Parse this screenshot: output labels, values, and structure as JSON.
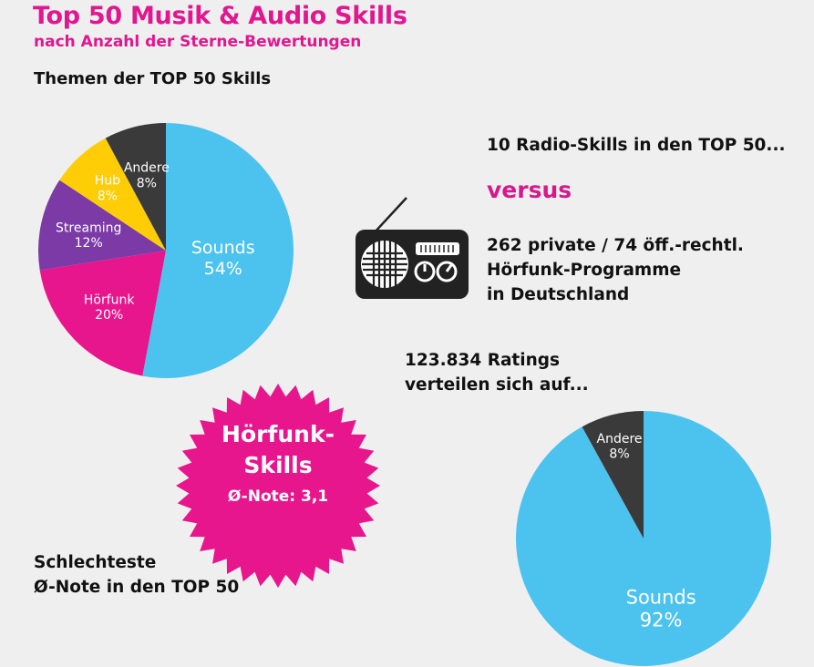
{
  "header": {
    "title": "Top 50 Musik & Audio Skills",
    "subtitle": "nach Anzahl der Sterne-Bewertungen"
  },
  "themes_heading": "Themen der TOP 50 Skills",
  "comparison": {
    "radio_skills": "10 Radio-Skills in den TOP 50...",
    "versus": "versus",
    "programs_lines": [
      "262 private / 74 öff.-rechtl.",
      "Hörfunk-Programme",
      "in Deutschland"
    ]
  },
  "ratings_lines": [
    "123.834 Ratings",
    "verteilen sich auf..."
  ],
  "badge": {
    "line1": "Hörfunk-",
    "line2": "Skills",
    "line3": "Ø-Note: 3,1"
  },
  "worst_lines": [
    "Schlechteste",
    "Ø-Note in den TOP 50"
  ],
  "icons": [
    "radio-icon"
  ],
  "colors": {
    "accent": "#e0178f",
    "sounds": "#4cc3ef",
    "hoerfunk": "#e8168d",
    "streaming": "#7b3aa6",
    "hub": "#ffcd05",
    "andere": "#3a3a3a"
  },
  "chart_data": [
    {
      "type": "pie",
      "title": "Themen der TOP 50 Skills",
      "slices": [
        {
          "label": "Sounds",
          "value": 54,
          "value_label": "54%",
          "color": "#4cc3ef"
        },
        {
          "label": "Hörfunk",
          "value": 20,
          "value_label": "20%",
          "color": "#e8168d"
        },
        {
          "label": "Streaming",
          "value": 12,
          "value_label": "12%",
          "color": "#7b3aa6"
        },
        {
          "label": "Hub",
          "value": 8,
          "value_label": "8%",
          "color": "#ffcd05"
        },
        {
          "label": "Andere",
          "value": 8,
          "value_label": "8%",
          "color": "#3a3a3a"
        }
      ]
    },
    {
      "type": "pie",
      "title": "123.834 Ratings verteilen sich auf...",
      "slices": [
        {
          "label": "Sounds",
          "value": 92,
          "value_label": "92%",
          "color": "#4cc3ef"
        },
        {
          "label": "Andere",
          "value": 8,
          "value_label": "8%",
          "color": "#3a3a3a"
        }
      ]
    }
  ]
}
